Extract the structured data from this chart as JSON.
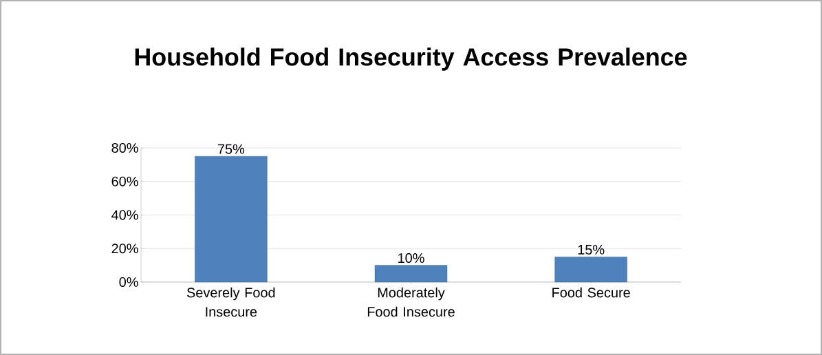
{
  "chart_data": {
    "type": "bar",
    "title": "Household Food Insecurity Access Prevalence",
    "categories": [
      "Severely Food Insecure",
      "Moderately Food Insecure",
      "Food Secure"
    ],
    "values": [
      75,
      10,
      15
    ],
    "color": "#4f81bd",
    "value_labels": [
      "75%",
      "10%",
      "15%"
    ],
    "ylim": [
      0,
      80
    ],
    "yticks": [
      {
        "value": 0,
        "label": "0%"
      },
      {
        "value": 20,
        "label": "20%"
      },
      {
        "value": 40,
        "label": "40%"
      },
      {
        "value": 60,
        "label": "60%"
      },
      {
        "value": 80,
        "label": "80%"
      }
    ],
    "grid": "y"
  }
}
